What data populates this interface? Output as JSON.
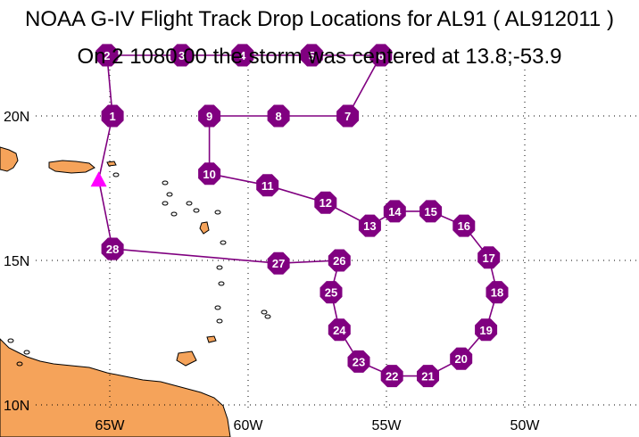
{
  "title": "NOAA G-IV Flight Track Drop Locations for AL91 ( AL912011 )",
  "subtitle": "On 2 1080 00 the storm was centered at 13.8;-53.9",
  "colors": {
    "land": "#f5a35a",
    "coast": "#000000",
    "track": "#800080",
    "drop_fill": "#800080",
    "drop_label": "#ffffff",
    "origin_marker": "#ff00ff",
    "grid": "#000000"
  },
  "lat_labels": [
    "20N",
    "15N",
    "10N"
  ],
  "lon_labels": [
    "65W",
    "60W",
    "55W",
    "50W"
  ],
  "chart_data": {
    "type": "scatter",
    "grid": true,
    "origin": {
      "lon": -65.4,
      "lat": 17.8,
      "shape": "triangle"
    },
    "drops": [
      {
        "label": "1",
        "lon": -64.9,
        "lat": 20.0
      },
      {
        "label": "2",
        "lon": -65.1,
        "lat": 22.1
      },
      {
        "label": "3",
        "lon": -62.4,
        "lat": 22.1
      },
      {
        "label": "4",
        "lon": -60.2,
        "lat": 22.1
      },
      {
        "label": "5",
        "lon": -57.7,
        "lat": 22.1
      },
      {
        "label": "6",
        "lon": -55.2,
        "lat": 22.1
      },
      {
        "label": "7",
        "lon": -56.4,
        "lat": 20.0
      },
      {
        "label": "8",
        "lon": -58.9,
        "lat": 20.0
      },
      {
        "label": "9",
        "lon": -61.4,
        "lat": 20.0
      },
      {
        "label": "10",
        "lon": -61.4,
        "lat": 18.0
      },
      {
        "label": "11",
        "lon": -59.3,
        "lat": 17.6
      },
      {
        "label": "12",
        "lon": -57.2,
        "lat": 17.0
      },
      {
        "label": "13",
        "lon": -55.6,
        "lat": 16.2
      },
      {
        "label": "14",
        "lon": -54.7,
        "lat": 16.7
      },
      {
        "label": "15",
        "lon": -53.4,
        "lat": 16.7
      },
      {
        "label": "16",
        "lon": -52.2,
        "lat": 16.2
      },
      {
        "label": "17",
        "lon": -51.3,
        "lat": 15.1
      },
      {
        "label": "18",
        "lon": -51.0,
        "lat": 13.9
      },
      {
        "label": "19",
        "lon": -51.4,
        "lat": 12.6
      },
      {
        "label": "20",
        "lon": -52.3,
        "lat": 11.6
      },
      {
        "label": "21",
        "lon": -53.5,
        "lat": 11.0
      },
      {
        "label": "22",
        "lon": -54.8,
        "lat": 11.0
      },
      {
        "label": "23",
        "lon": -56.0,
        "lat": 11.5
      },
      {
        "label": "24",
        "lon": -56.7,
        "lat": 12.6
      },
      {
        "label": "25",
        "lon": -57.0,
        "lat": 13.9
      },
      {
        "label": "26",
        "lon": -56.7,
        "lat": 15.0
      },
      {
        "label": "27",
        "lon": -58.9,
        "lat": 14.9
      },
      {
        "label": "28",
        "lon": -64.9,
        "lat": 15.4
      }
    ],
    "track_order": [
      "origin",
      "1",
      "2",
      "3",
      "4",
      "5",
      "6",
      "7",
      "8",
      "9",
      "10",
      "11",
      "12",
      "13",
      "14",
      "15",
      "16",
      "17",
      "18",
      "19",
      "20",
      "21",
      "22",
      "23",
      "24",
      "25",
      "26",
      "27",
      "28",
      "origin"
    ]
  }
}
